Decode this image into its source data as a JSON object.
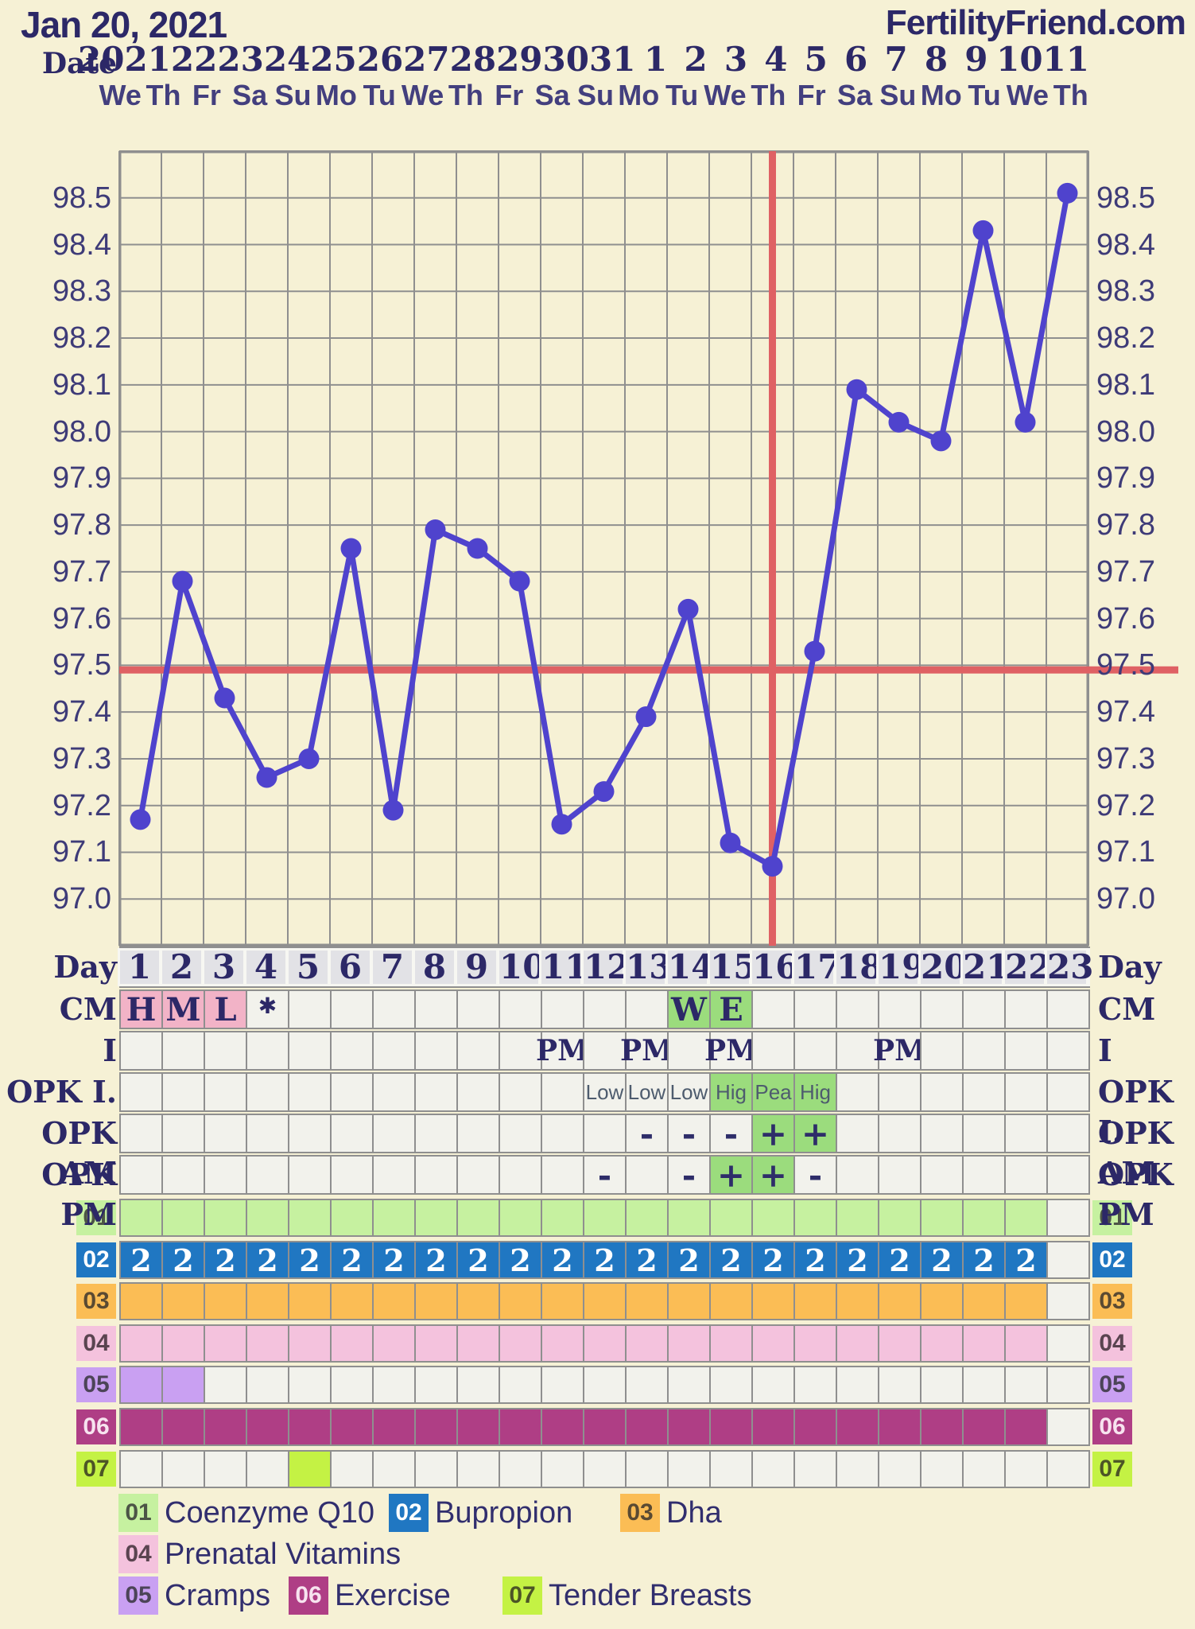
{
  "header": {
    "chart_date": "Jan 20, 2021",
    "brand": "FertilityFriend.com",
    "date_row_label": "Date"
  },
  "colors": {
    "background": "#f6f1d5",
    "navy_text": "#2c2867",
    "weekday_text": "#433f7e",
    "grid_line": "#8f8f8f",
    "cell_empty": "#f2f2ec",
    "day_cell": "#e2e2e6",
    "pink_cell": "#f2b3c7",
    "green_cell": "#9bdc7d",
    "temp_line": "#4f43cd",
    "red_line": "#df6164",
    "small_text": "#4e5c6e"
  },
  "chart_data": {
    "type": "line",
    "title": "Basal body temperature chart",
    "x_dates": [
      "20",
      "21",
      "22",
      "23",
      "24",
      "25",
      "26",
      "27",
      "28",
      "29",
      "30",
      "31",
      "1",
      "2",
      "3",
      "4",
      "5",
      "6",
      "7",
      "8",
      "9",
      "10",
      "11"
    ],
    "x_weekdays": [
      "We",
      "Th",
      "Fr",
      "Sa",
      "Su",
      "Mo",
      "Tu",
      "We",
      "Th",
      "Fr",
      "Sa",
      "Su",
      "Mo",
      "Tu",
      "We",
      "Th",
      "Fr",
      "Sa",
      "Su",
      "Mo",
      "Tu",
      "We",
      "Th"
    ],
    "n_days": 23,
    "temps_f": [
      97.17,
      97.68,
      97.43,
      97.26,
      97.3,
      97.75,
      97.19,
      97.79,
      97.75,
      97.68,
      97.16,
      97.23,
      97.39,
      97.62,
      97.12,
      97.07,
      97.53,
      98.09,
      98.02,
      97.98,
      98.43,
      98.02,
      98.51
    ],
    "ylim": [
      96.9,
      98.6
    ],
    "yticks": [
      97.0,
      97.1,
      97.2,
      97.3,
      97.4,
      97.5,
      97.6,
      97.7,
      97.8,
      97.9,
      98.0,
      98.1,
      98.2,
      98.3,
      98.4,
      98.5
    ],
    "coverline_temp": 97.49,
    "ovulation_day": 16,
    "grid": "on",
    "legend_position": "bottom"
  },
  "tracking_rows": {
    "day_row_label": "Day",
    "rows": [
      {
        "key": "cm",
        "label": "CM",
        "style": "letter",
        "entries": [
          {
            "day": 1,
            "text": "H",
            "bg": "pink"
          },
          {
            "day": 2,
            "text": "M",
            "bg": "pink"
          },
          {
            "day": 3,
            "text": "L",
            "bg": "pink"
          },
          {
            "day": 4,
            "text": "✱",
            "bg": "none"
          },
          {
            "day": 14,
            "text": "W",
            "bg": "green"
          },
          {
            "day": 15,
            "text": "E",
            "bg": "green"
          }
        ]
      },
      {
        "key": "intercourse",
        "label": "I",
        "style": "pm",
        "entries": [
          {
            "day": 11,
            "text": "PM",
            "bg": "none"
          },
          {
            "day": 13,
            "text": "PM",
            "bg": "none"
          },
          {
            "day": 15,
            "text": "PM",
            "bg": "none"
          },
          {
            "day": 19,
            "text": "PM",
            "bg": "none"
          }
        ]
      },
      {
        "key": "opk_i",
        "label": "OPK I.",
        "style": "small",
        "entries": [
          {
            "day": 12,
            "text": "Low",
            "bg": "none"
          },
          {
            "day": 13,
            "text": "Low",
            "bg": "none"
          },
          {
            "day": 14,
            "text": "Low",
            "bg": "none"
          },
          {
            "day": 15,
            "text": "Hig",
            "bg": "green"
          },
          {
            "day": 16,
            "text": "Pea",
            "bg": "green"
          },
          {
            "day": 17,
            "text": "Hig",
            "bg": "green"
          }
        ]
      },
      {
        "key": "opk_am",
        "label": "OPK AM",
        "style": "sign",
        "entries": [
          {
            "day": 13,
            "text": "-",
            "bg": "none"
          },
          {
            "day": 14,
            "text": "-",
            "bg": "none"
          },
          {
            "day": 15,
            "text": "-",
            "bg": "none"
          },
          {
            "day": 16,
            "text": "+",
            "bg": "green"
          },
          {
            "day": 17,
            "text": "+",
            "bg": "green"
          }
        ]
      },
      {
        "key": "opk_pm",
        "label": "OPK PM",
        "style": "sign",
        "entries": [
          {
            "day": 12,
            "text": "-",
            "bg": "none"
          },
          {
            "day": 14,
            "text": "-",
            "bg": "none"
          },
          {
            "day": 15,
            "text": "+",
            "bg": "green"
          },
          {
            "day": 16,
            "text": "+",
            "bg": "green"
          },
          {
            "day": 17,
            "text": "-",
            "bg": "none"
          }
        ]
      }
    ]
  },
  "medications": [
    {
      "id": "01",
      "name": "Coenzyme Q10",
      "color": "#c6f1a0",
      "chip_text_color": "#4c5546",
      "cell_label": "",
      "filled": {
        "from": 1,
        "to": 22
      }
    },
    {
      "id": "02",
      "name": "Bupropion",
      "color": "#2077c2",
      "chip_text_color": "#ffffff",
      "cell_label": "2",
      "filled": {
        "from": 1,
        "to": 22
      }
    },
    {
      "id": "03",
      "name": "Dha",
      "color": "#fbbd55",
      "chip_text_color": "#5a4a32",
      "cell_label": "",
      "filled": {
        "from": 1,
        "to": 22
      }
    },
    {
      "id": "04",
      "name": "Prenatal Vitamins",
      "color": "#f4c2dd",
      "chip_text_color": "#5a4450",
      "cell_label": "",
      "filled": {
        "from": 1,
        "to": 22
      }
    },
    {
      "id": "05",
      "name": "Cramps",
      "color": "#c9a0f2",
      "chip_text_color": "#4c4458",
      "cell_label": "",
      "filled": {
        "from": 1,
        "to": 2
      }
    },
    {
      "id": "06",
      "name": "Exercise",
      "color": "#af3e85",
      "chip_text_color": "#f7e3ef",
      "cell_label": "",
      "filled": {
        "from": 1,
        "to": 22
      }
    },
    {
      "id": "07",
      "name": "Tender Breasts",
      "color": "#c4f244",
      "chip_text_color": "#4c5526",
      "cell_label": "",
      "filled": {
        "from": 5,
        "to": 5
      }
    }
  ],
  "legend": {
    "lines": [
      [
        "01",
        "02",
        "03"
      ],
      [
        "04"
      ],
      [
        "05",
        "06",
        "07"
      ]
    ]
  }
}
